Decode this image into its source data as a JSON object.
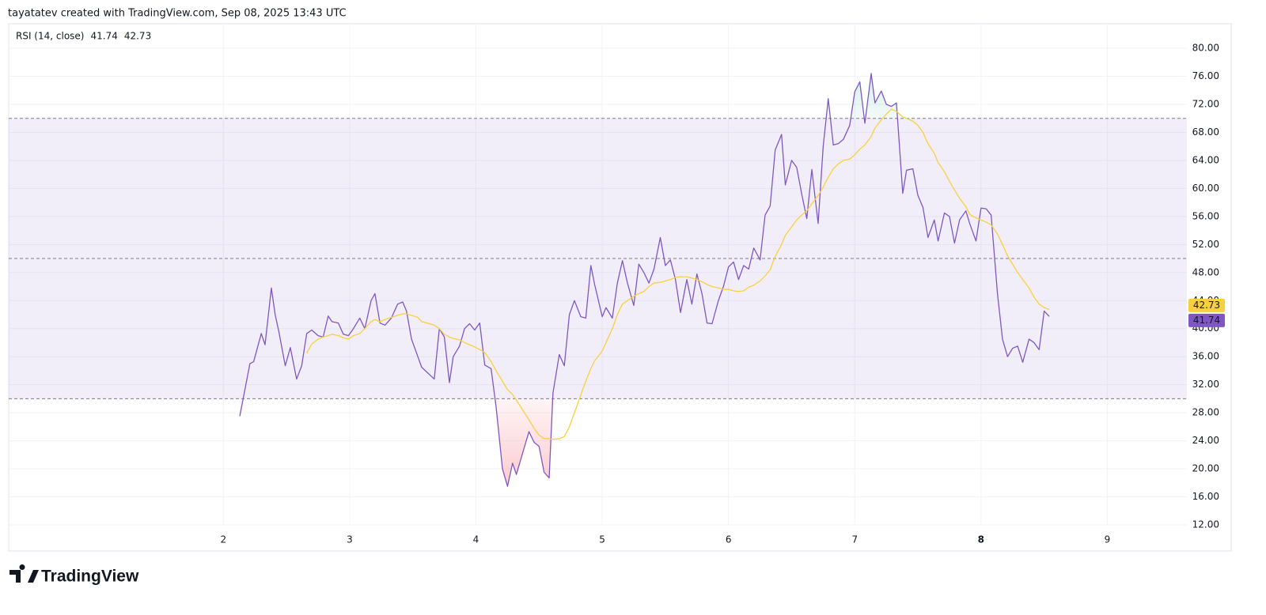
{
  "header": "tayatatev created with TradingView.com, Sep 08, 2025 13:43 UTC",
  "footer": {
    "logo": "TradingView"
  },
  "chart_data": {
    "type": "line",
    "indicator": "RSI (14, close)",
    "x": [
      2.13,
      2.21,
      2.24,
      2.3,
      2.33,
      2.38,
      2.41,
      2.44,
      2.49,
      2.53,
      2.58,
      2.62,
      2.66,
      2.7,
      2.75,
      2.79,
      2.83,
      2.86,
      2.91,
      2.95,
      2.99,
      3.03,
      3.08,
      3.12,
      3.17,
      3.2,
      3.24,
      3.28,
      3.33,
      3.38,
      3.42,
      3.45,
      3.49,
      3.54,
      3.57,
      3.67,
      3.71,
      3.75,
      3.79,
      3.82,
      3.87,
      3.91,
      3.95,
      3.99,
      4.03,
      4.07,
      4.12,
      4.16,
      4.21,
      4.25,
      4.29,
      4.32,
      4.42,
      4.46,
      4.5,
      4.54,
      4.58,
      4.61,
      4.66,
      4.7,
      4.74,
      4.78,
      4.83,
      4.87,
      4.91,
      4.94,
      5.0,
      5.03,
      5.08,
      5.12,
      5.16,
      5.2,
      5.25,
      5.29,
      5.33,
      5.37,
      5.41,
      5.46,
      5.5,
      5.54,
      5.58,
      5.62,
      5.67,
      5.71,
      5.75,
      5.79,
      5.83,
      5.87,
      5.92,
      5.96,
      6.0,
      6.04,
      6.08,
      6.12,
      6.16,
      6.2,
      6.25,
      6.29,
      6.33,
      6.37,
      6.42,
      6.45,
      6.5,
      6.54,
      6.58,
      6.62,
      6.66,
      6.71,
      6.75,
      6.79,
      6.83,
      6.87,
      6.91,
      6.96,
      7.0,
      7.04,
      7.08,
      7.13,
      7.16,
      7.21,
      7.25,
      7.29,
      7.33,
      7.38,
      7.41,
      7.46,
      7.5,
      7.54,
      7.58,
      7.63,
      7.66,
      7.71,
      7.75,
      7.79,
      7.83,
      7.88,
      7.91,
      7.96,
      8.0,
      8.04,
      8.08,
      8.13,
      8.17,
      8.21,
      8.25,
      8.29,
      8.33,
      8.38,
      8.42,
      8.46,
      8.5,
      8.54
    ],
    "series": [
      {
        "color": "#7e57c2",
        "values": [
          27.5,
          35,
          35.3,
          39.3,
          37.7,
          45.8,
          42,
          39.5,
          34.7,
          37.3,
          32.8,
          34.7,
          39.3,
          39.8,
          39,
          38.8,
          41.8,
          41,
          40.8,
          39.2,
          39,
          40,
          41.5,
          40,
          44,
          45,
          40.8,
          40.5,
          41.5,
          43.5,
          43.8,
          42.5,
          38.5,
          36,
          34.5,
          32.8,
          40,
          38.8,
          32.3,
          36,
          37.5,
          40,
          40.7,
          39.8,
          40.8,
          34.8,
          34.3,
          28.8,
          20,
          17.5,
          20.8,
          19.2,
          25.3,
          23.8,
          23.2,
          19.5,
          18.7,
          30.8,
          36.3,
          34.7,
          42,
          44,
          41.7,
          41.5,
          49,
          46.3,
          41.7,
          43,
          41.5,
          46.5,
          49.7,
          46.5,
          43.3,
          49.2,
          48,
          46.5,
          48.5,
          53,
          49,
          49.8,
          47,
          42.3,
          47,
          43.5,
          47.8,
          45,
          40.8,
          40.7,
          44,
          46,
          48.8,
          49.5,
          47,
          49,
          48.5,
          51.5,
          49.8,
          56.2,
          57.5,
          65.5,
          67.7,
          60.5,
          64,
          63,
          59.2,
          55.7,
          62.7,
          55,
          66,
          72.8,
          66.2,
          66.4,
          67,
          69,
          73.8,
          75.2,
          69.3,
          76.4,
          72.2,
          73.9,
          72,
          71.7,
          72.2,
          59.3,
          62.6,
          62.8,
          59,
          57.3,
          53,
          55.5,
          52.5,
          56.5,
          56,
          52.2,
          55.5,
          56.8,
          55,
          52.5,
          57.2,
          57.1,
          56.2,
          45,
          38.5,
          36,
          37.2,
          37.5,
          35.2,
          38.5,
          38,
          37,
          42.5,
          41.74
        ]
      },
      {
        "color": "#f7d13d",
        "values": [
          null,
          null,
          null,
          null,
          null,
          null,
          null,
          null,
          null,
          null,
          null,
          null,
          36.5,
          37.8,
          38.5,
          38.8,
          39.0,
          39.2,
          39.0,
          38.7,
          38.5,
          39.0,
          39.3,
          40.0,
          41.0,
          41.3,
          41.0,
          41.3,
          41.6,
          41.9,
          42.1,
          42.1,
          41.9,
          41.6,
          41.0,
          40.5,
          40.0,
          39.2,
          38.8,
          38.6,
          38.4,
          38.0,
          37.7,
          37.4,
          37.0,
          36.6,
          35.3,
          34.0,
          32.5,
          31.3,
          30.6,
          29.8,
          27.0,
          25.8,
          24.8,
          24.3,
          24.3,
          24.2,
          24.3,
          24.6,
          26.0,
          28.0,
          30.5,
          32.5,
          34.3,
          35.4,
          36.8,
          38.0,
          40.0,
          42.0,
          43.5,
          44.0,
          44.6,
          45.0,
          45.3,
          46.0,
          46.5,
          46.6,
          46.8,
          47.0,
          47.3,
          47.4,
          47.4,
          47.2,
          47.0,
          46.7,
          46.3,
          46.0,
          45.8,
          45.6,
          45.6,
          45.4,
          45.3,
          45.4,
          45.9,
          46.2,
          46.8,
          47.5,
          48.4,
          50.3,
          52.0,
          53.3,
          54.5,
          55.5,
          56.2,
          56.8,
          57.8,
          59.0,
          60.2,
          61.6,
          62.8,
          63.5,
          64.0,
          64.2,
          64.8,
          65.6,
          66.2,
          67.4,
          68.6,
          69.8,
          70.6,
          71.3,
          71.0,
          70.2,
          70.0,
          69.6,
          69.0,
          68.0,
          66.4,
          65.0,
          63.7,
          62.4,
          61.0,
          59.8,
          58.6,
          57.4,
          56.3,
          55.8,
          55.5,
          55.2,
          54.8,
          53.5,
          52.0,
          50.4,
          49.2,
          48.0,
          47.0,
          45.8,
          44.5,
          43.5,
          43.0,
          42.73
        ]
      }
    ],
    "xlim": [
      0.3,
      9.63
    ],
    "xticks": [
      2,
      3,
      4,
      5,
      6,
      7,
      8,
      9
    ],
    "highlight_xtick": 8,
    "ylim": [
      12,
      83.5
    ],
    "yticks": [
      {
        "value": 12,
        "label": "12.00"
      },
      {
        "value": 16,
        "label": "16.00"
      },
      {
        "value": 20,
        "label": "20.00"
      },
      {
        "value": 24,
        "label": "24.00"
      },
      {
        "value": 28,
        "label": "28.00"
      },
      {
        "value": 32,
        "label": "32.00"
      },
      {
        "value": 36,
        "label": "36.00"
      },
      {
        "value": 40,
        "label": "40.00"
      },
      {
        "value": 44,
        "label": "44.00"
      },
      {
        "value": 48,
        "label": "48.00"
      },
      {
        "value": 52,
        "label": "52.00"
      },
      {
        "value": 56,
        "label": "56.00"
      },
      {
        "value": 60,
        "label": "60.00"
      },
      {
        "value": 64,
        "label": "64.00"
      },
      {
        "value": 68,
        "label": "68.00"
      },
      {
        "value": 72,
        "label": "72.00"
      },
      {
        "value": 76,
        "label": "76.00"
      },
      {
        "value": 80,
        "label": "80.00"
      }
    ],
    "levels": [
      30,
      50,
      70
    ],
    "band_color": "#7e57c2",
    "oversold_color": "#f23645",
    "overbought_color": "#089981",
    "grid": true
  }
}
